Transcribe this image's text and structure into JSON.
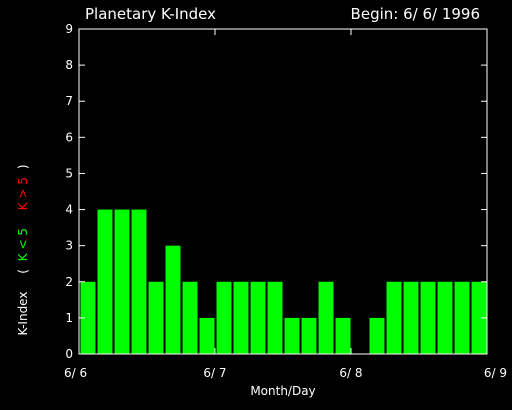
{
  "chart_data": {
    "type": "bar",
    "title": "Planetary K-Index",
    "subtitle": "Begin: 6/ 6/ 1996",
    "xlabel": "Month/Day",
    "ylabel": {
      "main": "K-Index",
      "open": "(",
      "green": "K < 5",
      "red": "K > 5",
      "close": ")"
    },
    "ylim": [
      0,
      9
    ],
    "yticks": [
      "0",
      "1",
      "2",
      "3",
      "4",
      "5",
      "6",
      "7",
      "8",
      "9"
    ],
    "xticks": [
      "6/ 6",
      "6/ 7",
      "6/ 8",
      "6/ 9"
    ],
    "values": [
      2,
      4,
      4,
      4,
      2,
      3,
      2,
      1,
      2,
      2,
      2,
      2,
      1,
      1,
      2,
      1,
      0,
      1,
      2,
      2,
      2,
      2,
      2,
      2
    ],
    "colors": {
      "low": "#00ff00",
      "high": "#ff0000",
      "axis": "#ffffff",
      "background": "#000000"
    },
    "grid": false,
    "legend": "none"
  }
}
